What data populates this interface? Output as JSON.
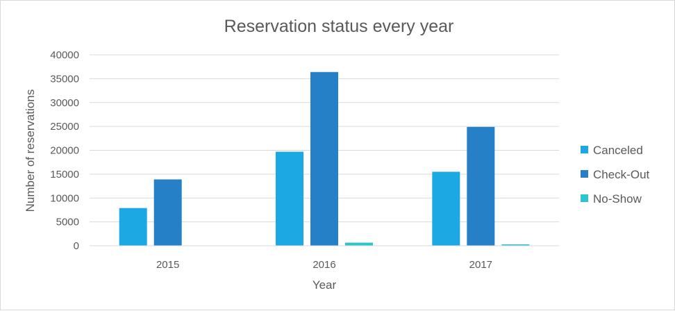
{
  "chart_data": {
    "type": "bar",
    "title": "Reservation status every year",
    "xlabel": "Year",
    "ylabel": "Number of reservations",
    "categories": [
      "2015",
      "2016",
      "2017"
    ],
    "ylim": [
      0,
      40000
    ],
    "yticks": [
      0,
      5000,
      10000,
      15000,
      20000,
      25000,
      30000,
      35000,
      40000
    ],
    "grid": true,
    "legend_position": "right",
    "series": [
      {
        "name": "Canceled",
        "color": "#1ca9e3",
        "values": [
          7900,
          19700,
          15500
        ]
      },
      {
        "name": "Check-Out",
        "color": "#2680c8",
        "values": [
          13900,
          36400,
          24900
        ]
      },
      {
        "name": "No-Show",
        "color": "#2bc4cf",
        "values": [
          0,
          650,
          300
        ]
      }
    ]
  }
}
